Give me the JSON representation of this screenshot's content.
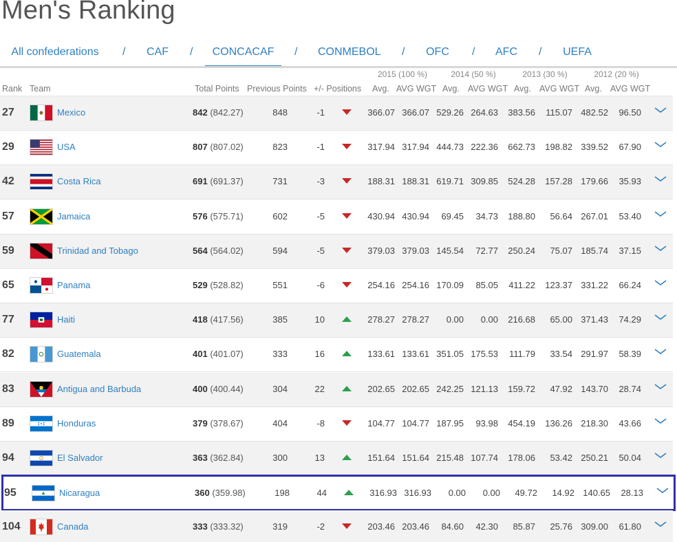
{
  "page": {
    "title": "Men's Ranking"
  },
  "tabs": [
    {
      "label": "All confederations",
      "active": false
    },
    {
      "label": "CAF",
      "active": false
    },
    {
      "label": "CONCACAF",
      "active": true
    },
    {
      "label": "CONMEBOL",
      "active": false
    },
    {
      "label": "OFC",
      "active": false
    },
    {
      "label": "AFC",
      "active": false
    },
    {
      "label": "UEFA",
      "active": false
    }
  ],
  "tab_separator": "/",
  "years": [
    "2015 (100 %)",
    "2014 (50 %)",
    "2013 (30 %)",
    "2012 (20 %)"
  ],
  "columns": {
    "rank": "Rank",
    "team": "Team",
    "total_points": "Total Points",
    "previous_points": "Previous Points",
    "change": "+/- Positions",
    "avg": "Avg.",
    "avg_wgt": "AVG WGT"
  },
  "colors": {
    "accent": "#2f7fc1",
    "down": "#c62828",
    "up": "#2e9e4f",
    "highlight_border": "#2f2fa8"
  },
  "rows": [
    {
      "rank": "27",
      "team": "Mexico",
      "flag": "mexico-flag",
      "points": "842",
      "points_exact": "(842.27)",
      "previous": "848",
      "change": "-1",
      "trend": "down",
      "y2015_avg": "366.07",
      "y2015_wgt": "366.07",
      "y2014_avg": "529.26",
      "y2014_wgt": "264.63",
      "y2013_avg": "383.56",
      "y2013_wgt": "115.07",
      "y2012_avg": "482.52",
      "y2012_wgt": "96.50"
    },
    {
      "rank": "29",
      "team": "USA",
      "flag": "usa-flag",
      "points": "807",
      "points_exact": "(807.02)",
      "previous": "823",
      "change": "-1",
      "trend": "down",
      "y2015_avg": "317.94",
      "y2015_wgt": "317.94",
      "y2014_avg": "444.73",
      "y2014_wgt": "222.36",
      "y2013_avg": "662.73",
      "y2013_wgt": "198.82",
      "y2012_avg": "339.52",
      "y2012_wgt": "67.90"
    },
    {
      "rank": "42",
      "team": "Costa Rica",
      "flag": "costa-rica-flag",
      "points": "691",
      "points_exact": "(691.37)",
      "previous": "731",
      "change": "-3",
      "trend": "down",
      "y2015_avg": "188.31",
      "y2015_wgt": "188.31",
      "y2014_avg": "619.71",
      "y2014_wgt": "309.85",
      "y2013_avg": "524.28",
      "y2013_wgt": "157.28",
      "y2012_avg": "179.66",
      "y2012_wgt": "35.93"
    },
    {
      "rank": "57",
      "team": "Jamaica",
      "flag": "jamaica-flag",
      "points": "576",
      "points_exact": "(575.71)",
      "previous": "602",
      "change": "-5",
      "trend": "down",
      "y2015_avg": "430.94",
      "y2015_wgt": "430.94",
      "y2014_avg": "69.45",
      "y2014_wgt": "34.73",
      "y2013_avg": "188.80",
      "y2013_wgt": "56.64",
      "y2012_avg": "267.01",
      "y2012_wgt": "53.40"
    },
    {
      "rank": "59",
      "team": "Trinidad and Tobago",
      "flag": "trinidad-flag",
      "points": "564",
      "points_exact": "(564.02)",
      "previous": "594",
      "change": "-5",
      "trend": "down",
      "y2015_avg": "379.03",
      "y2015_wgt": "379.03",
      "y2014_avg": "145.54",
      "y2014_wgt": "72.77",
      "y2013_avg": "250.24",
      "y2013_wgt": "75.07",
      "y2012_avg": "185.74",
      "y2012_wgt": "37.15"
    },
    {
      "rank": "65",
      "team": "Panama",
      "flag": "panama-flag",
      "points": "529",
      "points_exact": "(528.82)",
      "previous": "551",
      "change": "-6",
      "trend": "down",
      "y2015_avg": "254.16",
      "y2015_wgt": "254.16",
      "y2014_avg": "170.09",
      "y2014_wgt": "85.05",
      "y2013_avg": "411.22",
      "y2013_wgt": "123.37",
      "y2012_avg": "331.22",
      "y2012_wgt": "66.24"
    },
    {
      "rank": "77",
      "team": "Haiti",
      "flag": "haiti-flag",
      "points": "418",
      "points_exact": "(417.56)",
      "previous": "385",
      "change": "10",
      "trend": "up",
      "y2015_avg": "278.27",
      "y2015_wgt": "278.27",
      "y2014_avg": "0.00",
      "y2014_wgt": "0.00",
      "y2013_avg": "216.68",
      "y2013_wgt": "65.00",
      "y2012_avg": "371.43",
      "y2012_wgt": "74.29"
    },
    {
      "rank": "82",
      "team": "Guatemala",
      "flag": "guatemala-flag",
      "points": "401",
      "points_exact": "(401.07)",
      "previous": "333",
      "change": "16",
      "trend": "up",
      "y2015_avg": "133.61",
      "y2015_wgt": "133.61",
      "y2014_avg": "351.05",
      "y2014_wgt": "175.53",
      "y2013_avg": "111.79",
      "y2013_wgt": "33.54",
      "y2012_avg": "291.97",
      "y2012_wgt": "58.39"
    },
    {
      "rank": "83",
      "team": "Antigua and Barbuda",
      "flag": "antigua-flag",
      "points": "400",
      "points_exact": "(400.44)",
      "previous": "304",
      "change": "22",
      "trend": "up",
      "y2015_avg": "202.65",
      "y2015_wgt": "202.65",
      "y2014_avg": "242.25",
      "y2014_wgt": "121.13",
      "y2013_avg": "159.72",
      "y2013_wgt": "47.92",
      "y2012_avg": "143.70",
      "y2012_wgt": "28.74"
    },
    {
      "rank": "89",
      "team": "Honduras",
      "flag": "honduras-flag",
      "points": "379",
      "points_exact": "(378.67)",
      "previous": "404",
      "change": "-8",
      "trend": "down",
      "y2015_avg": "104.77",
      "y2015_wgt": "104.77",
      "y2014_avg": "187.95",
      "y2014_wgt": "93.98",
      "y2013_avg": "454.19",
      "y2013_wgt": "136.26",
      "y2012_avg": "218.30",
      "y2012_wgt": "43.66"
    },
    {
      "rank": "94",
      "team": "El Salvador",
      "flag": "el-salvador-flag",
      "points": "363",
      "points_exact": "(362.84)",
      "previous": "300",
      "change": "13",
      "trend": "up",
      "y2015_avg": "151.64",
      "y2015_wgt": "151.64",
      "y2014_avg": "215.48",
      "y2014_wgt": "107.74",
      "y2013_avg": "178.06",
      "y2013_wgt": "53.42",
      "y2012_avg": "250.21",
      "y2012_wgt": "50.04"
    },
    {
      "rank": "95",
      "team": "Nicaragua",
      "flag": "nicaragua-flag",
      "points": "360",
      "points_exact": "(359.98)",
      "previous": "198",
      "change": "44",
      "trend": "up",
      "highlight": true,
      "y2015_avg": "316.93",
      "y2015_wgt": "316.93",
      "y2014_avg": "0.00",
      "y2014_wgt": "0.00",
      "y2013_avg": "49.72",
      "y2013_wgt": "14.92",
      "y2012_avg": "140.65",
      "y2012_wgt": "28.13"
    },
    {
      "rank": "104",
      "team": "Canada",
      "flag": "canada-flag",
      "points": "333",
      "points_exact": "(333.32)",
      "previous": "319",
      "change": "-2",
      "trend": "down",
      "y2015_avg": "203.46",
      "y2015_wgt": "203.46",
      "y2014_avg": "84.60",
      "y2014_wgt": "42.30",
      "y2013_avg": "85.87",
      "y2013_wgt": "25.76",
      "y2012_avg": "309.00",
      "y2012_wgt": "61.80"
    }
  ]
}
